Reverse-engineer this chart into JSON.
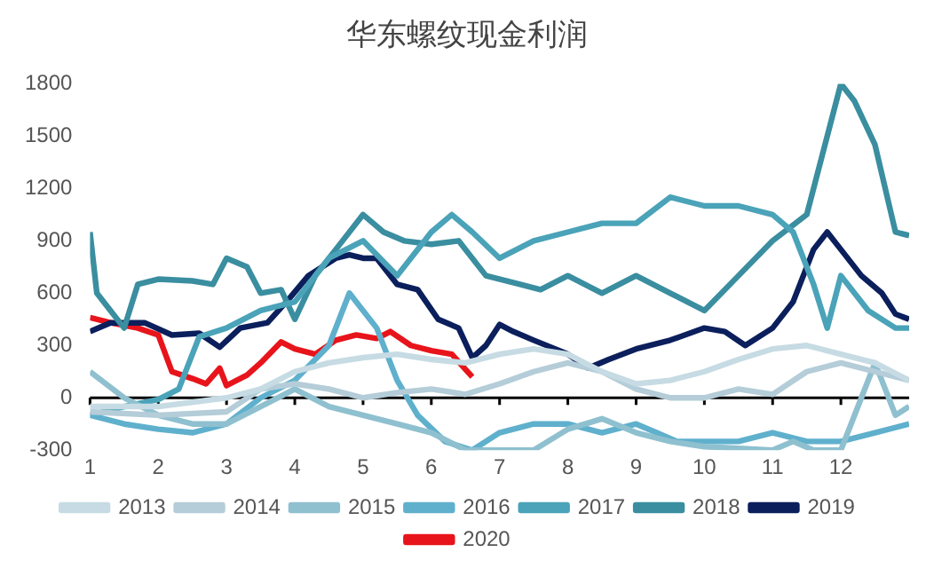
{
  "chart_data": {
    "type": "line",
    "title": "华东螺纹现金利润",
    "xlim": [
      1,
      13
    ],
    "xticks": [
      1,
      2,
      3,
      4,
      5,
      6,
      7,
      8,
      9,
      10,
      11,
      12
    ],
    "ylim": [
      -300,
      1800
    ],
    "yticks": [
      -300,
      0,
      300,
      600,
      900,
      1200,
      1500,
      1800
    ],
    "grid": false,
    "legend": "bottom",
    "marker": "none",
    "line_style": "solid",
    "ref_lines": [
      {
        "axis": "y",
        "value": 0,
        "color": "#000000"
      }
    ],
    "series": [
      {
        "name": "2013",
        "color": "#c6dbe3",
        "x": [
          1,
          2,
          3,
          3.5,
          4,
          4.5,
          5,
          5.5,
          6,
          6.5,
          7,
          7.5,
          8,
          8.5,
          9,
          9.5,
          10,
          10.5,
          11,
          11.5,
          12,
          12.5,
          13
        ],
        "values": [
          -50,
          -50,
          0,
          50,
          150,
          200,
          230,
          250,
          220,
          200,
          250,
          280,
          250,
          150,
          80,
          100,
          150,
          220,
          280,
          300,
          250,
          200,
          100
        ]
      },
      {
        "name": "2014",
        "color": "#b4cdd8",
        "x": [
          1,
          2,
          3,
          3.5,
          4,
          4.5,
          5,
          5.5,
          6,
          6.5,
          7,
          7.5,
          8,
          8.5,
          9,
          9.5,
          10,
          10.5,
          11,
          11.5,
          12,
          12.5,
          13
        ],
        "values": [
          -80,
          -100,
          -80,
          50,
          80,
          50,
          0,
          30,
          50,
          20,
          80,
          150,
          200,
          150,
          50,
          0,
          0,
          50,
          20,
          150,
          200,
          150,
          100
        ]
      },
      {
        "name": "2015",
        "color": "#8fc0cf",
        "x": [
          1,
          1.5,
          2,
          2.5,
          3,
          3.5,
          4,
          4.5,
          5,
          5.5,
          6,
          6.5,
          7,
          7.5,
          8,
          8.5,
          9,
          9.5,
          10,
          11,
          11.3,
          11.6,
          12,
          12.3,
          12.5,
          12.8,
          13
        ],
        "values": [
          150,
          0,
          -100,
          -150,
          -150,
          -50,
          50,
          -50,
          -100,
          -150,
          -200,
          -300,
          -300,
          -300,
          -180,
          -120,
          -200,
          -250,
          -280,
          -300,
          -250,
          -300,
          -300,
          0,
          200,
          -100,
          -50
        ]
      },
      {
        "name": "2016",
        "color": "#5fb0cc",
        "x": [
          1,
          1.5,
          2,
          2.5,
          3,
          3.5,
          4,
          4.5,
          4.8,
          5.2,
          5.5,
          5.8,
          6.2,
          6.6,
          7,
          7.5,
          8,
          8.5,
          9,
          9.3,
          9.6,
          10,
          10.5,
          11,
          11.5,
          12,
          12.5,
          13
        ],
        "values": [
          -100,
          -150,
          -180,
          -200,
          -150,
          0,
          100,
          300,
          600,
          400,
          100,
          -100,
          -250,
          -300,
          -200,
          -150,
          -150,
          -200,
          -150,
          -200,
          -250,
          -250,
          -250,
          -200,
          -250,
          -250,
          -200,
          -150
        ]
      },
      {
        "name": "2017",
        "color": "#4aa3b8",
        "x": [
          1,
          1.5,
          2,
          2.3,
          2.6,
          3,
          3.5,
          4,
          4.5,
          5,
          5.5,
          6,
          6.3,
          6.6,
          7,
          7.5,
          8,
          8.5,
          9,
          9.5,
          10,
          10.5,
          11,
          11.3,
          11.6,
          11.8,
          12,
          12.4,
          12.8,
          13
        ],
        "values": [
          -100,
          -50,
          -10,
          50,
          350,
          400,
          500,
          550,
          800,
          900,
          700,
          950,
          1050,
          950,
          800,
          900,
          950,
          1000,
          1000,
          1150,
          1100,
          1100,
          1050,
          950,
          650,
          400,
          700,
          500,
          400,
          400
        ]
      },
      {
        "name": "2018",
        "color": "#3a8ea0",
        "x": [
          1,
          1.1,
          1.3,
          1.5,
          1.7,
          2,
          2.5,
          2.8,
          3,
          3.3,
          3.5,
          3.8,
          4,
          4.3,
          4.6,
          5,
          5.3,
          5.6,
          6,
          6.4,
          6.8,
          7.3,
          7.6,
          8,
          8.5,
          9,
          9.5,
          10,
          10.5,
          11,
          11.5,
          12,
          12.2,
          12.5,
          12.8,
          13
        ],
        "values": [
          950,
          600,
          500,
          400,
          650,
          680,
          670,
          650,
          800,
          750,
          600,
          620,
          450,
          700,
          850,
          1050,
          950,
          900,
          880,
          900,
          700,
          650,
          620,
          700,
          600,
          700,
          600,
          500,
          700,
          900,
          1050,
          1800,
          1700,
          1450,
          950,
          930
        ]
      },
      {
        "name": "2019",
        "color": "#0b1f5c",
        "x": [
          1,
          1.3,
          1.8,
          2.2,
          2.6,
          2.9,
          3.2,
          3.6,
          3.9,
          4.2,
          4.6,
          4.8,
          5,
          5.2,
          5.5,
          5.8,
          6.1,
          6.4,
          6.6,
          6.8,
          7,
          7.2,
          7.5,
          8,
          8.3,
          8.6,
          9,
          9.5,
          10,
          10.3,
          10.6,
          11,
          11.3,
          11.6,
          11.8,
          12,
          12.3,
          12.6,
          12.8,
          13
        ],
        "values": [
          380,
          430,
          430,
          360,
          370,
          290,
          400,
          430,
          560,
          700,
          800,
          820,
          800,
          800,
          650,
          620,
          450,
          400,
          230,
          300,
          420,
          380,
          330,
          250,
          170,
          220,
          280,
          330,
          400,
          380,
          300,
          400,
          550,
          850,
          950,
          850,
          700,
          600,
          480,
          450
        ]
      },
      {
        "name": "2020",
        "color": "#e8141b",
        "x": [
          1,
          1.3,
          1.7,
          2,
          2.2,
          2.5,
          2.7,
          2.9,
          3,
          3.3,
          3.5,
          3.8,
          4,
          4.3,
          4.6,
          4.9,
          5.2,
          5.4,
          5.7,
          6,
          6.3,
          6.6
        ],
        "values": [
          460,
          430,
          400,
          360,
          150,
          110,
          80,
          170,
          70,
          130,
          200,
          320,
          280,
          250,
          330,
          360,
          340,
          380,
          300,
          270,
          250,
          120
        ]
      }
    ]
  }
}
